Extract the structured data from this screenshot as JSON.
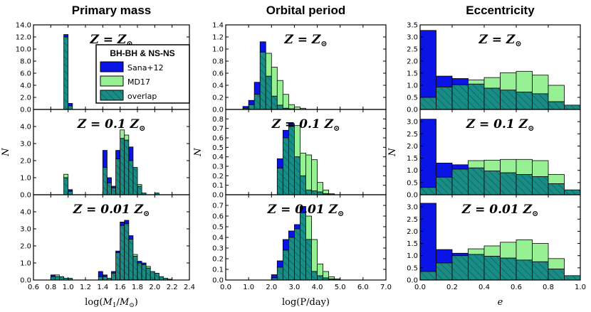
{
  "colors": {
    "sana12": "#0a14e6",
    "md17": "#98f095",
    "overlap": "#1a8c86",
    "hatch": "#0c4a46"
  },
  "legend": {
    "title": "BH-BH & NS-NS",
    "items": [
      "Sana+12",
      "MD17",
      "overlap"
    ]
  },
  "chart_data": [
    {
      "type": "histogram",
      "title": "Primary mass",
      "xlabel": "log(M1/M⊙)",
      "ylabel": "N",
      "xlim": [
        0.6,
        2.4
      ],
      "xticks": [
        "0.6",
        "0.8",
        "1.0",
        "1.2",
        "1.4",
        "1.6",
        "1.8",
        "2.0",
        "2.2",
        "2.4"
      ],
      "bin_width": 0.05,
      "bin_edges_start": [
        0.8,
        0.85,
        0.9,
        0.95,
        1.0,
        1.05,
        1.1,
        1.15,
        1.2,
        1.25,
        1.3,
        1.35,
        1.4,
        1.45,
        1.5,
        1.55,
        1.6,
        1.65,
        1.7,
        1.75,
        1.8,
        1.85,
        1.9,
        1.95,
        2.0,
        2.05,
        2.1,
        2.15,
        2.2
      ],
      "panels": [
        {
          "label": "Z = Z⊙",
          "ylim": [
            0,
            14
          ],
          "yticks": [
            "0.0",
            "2.0",
            "4.0",
            "6.0",
            "8.0",
            "10.0",
            "12.0",
            "14.0"
          ],
          "sana12": [
            0,
            0,
            0,
            12.4,
            1.0,
            0,
            0,
            0,
            0,
            0,
            0,
            0,
            0,
            0,
            0,
            0,
            0,
            0,
            0,
            0,
            0,
            0,
            0,
            0,
            0,
            0,
            0,
            0,
            0
          ],
          "md17": [
            0,
            0,
            0,
            12.0,
            0.6,
            0,
            0,
            0,
            0,
            0,
            0,
            0,
            0,
            0,
            0,
            0,
            0,
            0,
            0,
            0,
            0,
            0,
            0,
            0,
            0,
            0,
            0,
            0,
            0
          ]
        },
        {
          "label": "Z = 0.1 Z⊙",
          "ylim": [
            0,
            5
          ],
          "yticks": [
            "0.0",
            "1.0",
            "2.0",
            "3.0",
            "4.0"
          ],
          "sana12": [
            0,
            0,
            0,
            1.0,
            0.3,
            0,
            0,
            0,
            0,
            0,
            0,
            0,
            2.6,
            1.0,
            0.5,
            2.6,
            3.3,
            3.2,
            2.8,
            1.6,
            0.5,
            0.1,
            0,
            0,
            0.1,
            0,
            0,
            0,
            0
          ],
          "md17": [
            0,
            0,
            0,
            1.2,
            0.2,
            0,
            0,
            0,
            0,
            0,
            0,
            0,
            1.6,
            0.7,
            0.4,
            2.1,
            3.8,
            3.5,
            2.0,
            1.6,
            0.6,
            0.1,
            0,
            0,
            0.1,
            0,
            0,
            0,
            0
          ]
        },
        {
          "label": "Z = 0.01 Z⊙",
          "ylim": [
            0,
            5
          ],
          "yticks": [
            "0.0",
            "1.0",
            "2.0",
            "3.0",
            "4.0"
          ],
          "sana12": [
            0.3,
            0.2,
            0.2,
            0.1,
            0.1,
            0,
            0,
            0,
            0,
            0,
            0,
            0.5,
            0.3,
            0.1,
            0.5,
            1.7,
            3.4,
            3.5,
            2.6,
            1.4,
            1.1,
            1.0,
            0.7,
            0.5,
            0.4,
            0.2,
            0.1,
            0.05,
            0
          ],
          "md17": [
            0.2,
            0.3,
            0.2,
            0.1,
            0.1,
            0,
            0,
            0,
            0,
            0,
            0,
            0.2,
            0.2,
            0.1,
            0.4,
            1.6,
            3.2,
            3.3,
            2.4,
            1.5,
            1.0,
            0.9,
            0.8,
            0.5,
            0.4,
            0.2,
            0.1,
            0.05,
            0
          ]
        }
      ]
    },
    {
      "type": "histogram",
      "title": "Orbital period",
      "xlabel": "log(P/day)",
      "ylabel": "N",
      "xlim": [
        0.0,
        7.0
      ],
      "xticks": [
        "0.0",
        "1.0",
        "2.0",
        "3.0",
        "4.0",
        "5.0",
        "6.0",
        "7.0"
      ],
      "bin_width": 0.25,
      "bin_edges_start": [
        0.75,
        1.0,
        1.25,
        1.5,
        1.75,
        2.0,
        2.25,
        2.5,
        2.75,
        3.0,
        3.25,
        3.5,
        3.75,
        4.0,
        4.25,
        4.5,
        4.75
      ],
      "panels": [
        {
          "label": "Z = Z⊙",
          "ylim": [
            0,
            1.4
          ],
          "yticks": [
            "0.0",
            "0.2",
            "0.4",
            "0.6",
            "0.8",
            "1.0",
            "1.2",
            "1.4"
          ],
          "sana12": [
            0.05,
            0.15,
            0.45,
            1.12,
            0.55,
            0.22,
            0.07,
            0.02,
            0.01,
            0,
            0,
            0,
            0,
            0,
            0,
            0,
            0
          ],
          "md17": [
            0.02,
            0.08,
            0.25,
            0.95,
            0.93,
            0.7,
            0.48,
            0.25,
            0.08,
            0.04,
            0.02,
            0,
            0,
            0,
            0,
            0,
            0
          ]
        },
        {
          "label": "Z = 0.1 Z⊙",
          "ylim": [
            0,
            0.9
          ],
          "yticks": [
            "0.0",
            "0.1",
            "0.2",
            "0.3",
            "0.4",
            "0.5",
            "0.6",
            "0.7",
            "0.8"
          ],
          "sana12": [
            0,
            0,
            0,
            0,
            0,
            0,
            0.38,
            0.68,
            0.75,
            0.4,
            0.2,
            0.05,
            0.04,
            0.03,
            0.01,
            0.01,
            0
          ],
          "md17": [
            0,
            0,
            0,
            0,
            0,
            0,
            0.28,
            0.6,
            0.72,
            0.73,
            0.44,
            0.42,
            0.37,
            0.13,
            0.05,
            0.01,
            0
          ]
        },
        {
          "label": "Z = 0.01 Z⊙",
          "ylim": [
            0,
            0.8
          ],
          "yticks": [
            "0.0",
            "0.1",
            "0.2",
            "0.3",
            "0.4",
            "0.5",
            "0.6",
            "0.7"
          ],
          "sana12": [
            0,
            0,
            0,
            0,
            0,
            0.05,
            0.18,
            0.38,
            0.46,
            0.52,
            0.69,
            0.38,
            0.08,
            0.04,
            0.02,
            0.01,
            0.01
          ],
          "md17": [
            0,
            0,
            0,
            0,
            0,
            0.02,
            0.12,
            0.28,
            0.4,
            0.48,
            0.63,
            0.6,
            0.38,
            0.15,
            0.08,
            0.03,
            0.01
          ]
        }
      ]
    },
    {
      "type": "histogram",
      "title": "Eccentricity",
      "xlabel": "e",
      "ylabel": "N",
      "xlim": [
        0.0,
        1.0
      ],
      "xticks": [
        "0.0",
        "0.2",
        "0.4",
        "0.6",
        "0.8",
        "1.0"
      ],
      "bin_width": 0.1,
      "bin_edges_start": [
        0.0,
        0.1,
        0.2,
        0.3,
        0.4,
        0.5,
        0.6,
        0.7,
        0.8,
        0.9
      ],
      "panels": [
        {
          "label": "Z = Z⊙",
          "ylim": [
            0,
            3.5
          ],
          "yticks": [
            "0.0",
            "0.5",
            "1.0",
            "1.5",
            "2.0",
            "2.5",
            "3.0",
            "3.5"
          ],
          "sana12": [
            3.27,
            1.38,
            1.28,
            1.05,
            0.88,
            0.8,
            0.72,
            0.65,
            0.32,
            0.18
          ],
          "md17": [
            0.5,
            0.93,
            1.02,
            1.22,
            1.32,
            1.52,
            1.58,
            1.42,
            1.0,
            0.18
          ]
        },
        {
          "label": "Z = 0.1 Z⊙",
          "ylim": [
            0,
            3.5
          ],
          "yticks": [
            "0.0",
            "0.5",
            "1.0",
            "1.5",
            "2.0",
            "2.5",
            "3.0"
          ],
          "sana12": [
            3.1,
            1.3,
            1.23,
            1.1,
            0.98,
            0.9,
            0.83,
            0.74,
            0.45,
            0.2
          ],
          "md17": [
            0.3,
            0.72,
            1.05,
            1.4,
            1.42,
            1.45,
            1.45,
            1.4,
            0.83,
            0.2
          ]
        },
        {
          "label": "Z = 0.01 Z⊙",
          "ylim": [
            0,
            3.5
          ],
          "yticks": [
            "0.0",
            "0.5",
            "1.0",
            "1.5",
            "2.0",
            "2.5",
            "3.0"
          ],
          "sana12": [
            3.15,
            1.25,
            1.1,
            1.05,
            0.98,
            0.9,
            0.82,
            0.75,
            0.45,
            0.18
          ],
          "md17": [
            0.35,
            0.7,
            1.0,
            1.28,
            1.4,
            1.55,
            1.65,
            1.5,
            0.88,
            0.18
          ]
        }
      ]
    }
  ]
}
